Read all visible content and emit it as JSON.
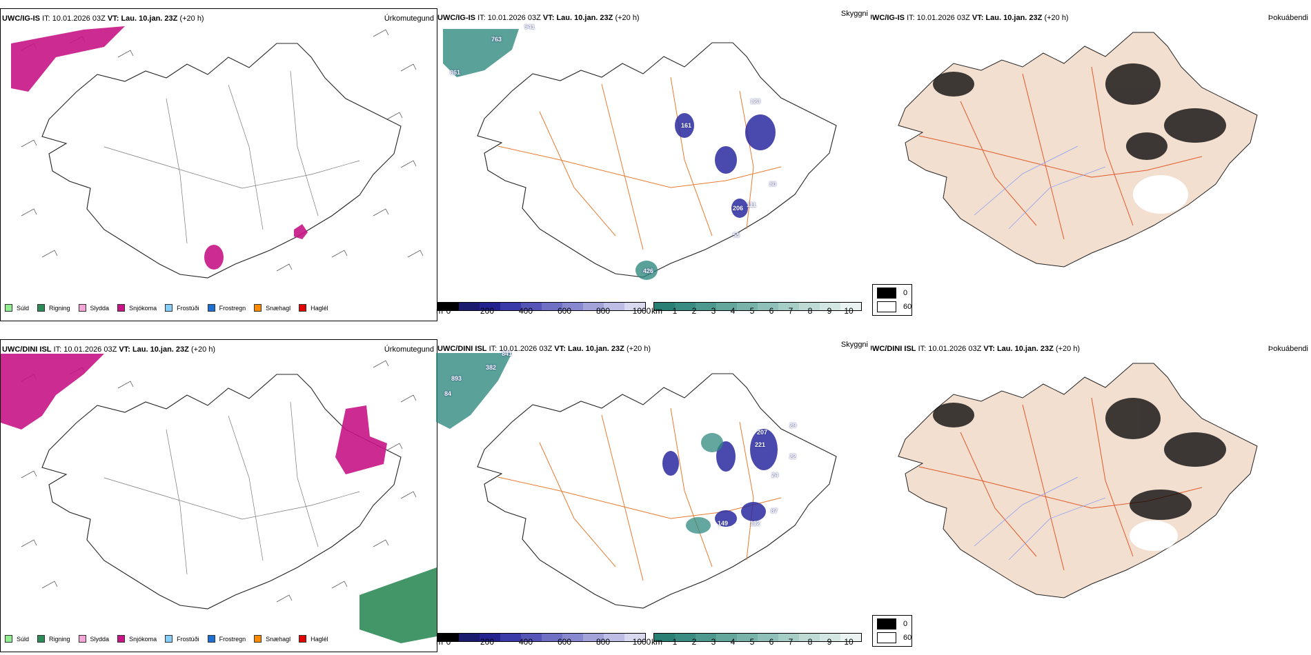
{
  "rows": [
    {
      "model": "UWC/IG-IS",
      "it_label": "IT:",
      "it_value": "10.01.2026 03Z",
      "vt_label": "VT:",
      "vt_value": "Lau. 10.jan. 23Z",
      "offset": "(+20 h)",
      "precip_title": "Úrkomutegund",
      "vis_title": "Skyggni",
      "fog_title": "Þokuábendi",
      "labels": [
        "763",
        "941",
        "861",
        "161",
        "123",
        "80",
        "206",
        "111",
        "55",
        "426"
      ]
    },
    {
      "model": "UWC/DINI ISL",
      "it_label": "IT:",
      "it_value": "10.01.2026 03Z",
      "vt_label": "VT:",
      "vt_value": "Lau. 10.jan. 23Z",
      "offset": "(+20 h)",
      "precip_title": "Úrkomutegund",
      "vis_title": "Skyggni",
      "fog_title": "Þokuábendi",
      "labels": [
        "893",
        "382",
        "84",
        "841",
        "29",
        "207",
        "221",
        "149",
        "112",
        "87",
        "22",
        "24"
      ]
    }
  ],
  "precip_legend": [
    {
      "label": "Súld",
      "color": "#90ee90"
    },
    {
      "label": "Rigning",
      "color": "#2e8b57"
    },
    {
      "label": "Slydda",
      "color": "#f4a6d7"
    },
    {
      "label": "Snjókoma",
      "color": "#c71585"
    },
    {
      "label": "Frostúði",
      "color": "#87cefa"
    },
    {
      "label": "Frostregn",
      "color": "#1e6fcf"
    },
    {
      "label": "Snæhagl",
      "color": "#ff8c00"
    },
    {
      "label": "Haglél",
      "color": "#e00000"
    }
  ],
  "ceiling_bar": {
    "unit": "m",
    "ticks": [
      "0",
      "200",
      "400",
      "600",
      "800",
      "1000"
    ],
    "colors": [
      "#000000",
      "#1a1a6e",
      "#23238f",
      "#3a3aa8",
      "#5555b8",
      "#6f6fc4",
      "#8888cf",
      "#a3a3da",
      "#bdbde5",
      "#d8d8f0"
    ]
  },
  "vis_bar": {
    "unit": "km",
    "ticks": [
      "1",
      "2",
      "3",
      "4",
      "5",
      "6",
      "7",
      "8",
      "9",
      "10"
    ],
    "colors": [
      "#2a7f75",
      "#3a8c82",
      "#4d998f",
      "#62a69c",
      "#78b3aa",
      "#8fc0b8",
      "#a6cdc6",
      "#bddad4",
      "#d3e7e2",
      "#e9f3f1"
    ]
  },
  "fog_legend": {
    "min": "0",
    "max": "60",
    "min_color": "#000000",
    "max_color": "#ffffff"
  },
  "colors": {
    "land": "#f3dfd0",
    "road": "#e87a2d",
    "river": "#8aa0f0",
    "snow": "#c71585",
    "rain": "#2e8b57",
    "teal": "#2f8a80",
    "blue": "#2a2aa0"
  }
}
